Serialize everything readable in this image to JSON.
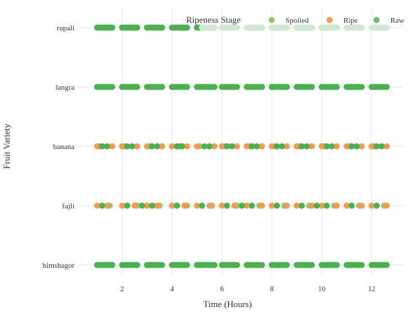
{
  "chart_data": {
    "type": "scatter",
    "xlabel": "Time (Hours)",
    "ylabel": "Fruit Variety",
    "x_ticks": [
      2,
      4,
      6,
      8,
      10,
      12
    ],
    "xlim": [
      0.2,
      13.3
    ],
    "categories": [
      "rupali",
      "langra",
      "banana",
      "fajli",
      "himshagor"
    ],
    "grid": true,
    "legend": {
      "title": "Ripeness Stage",
      "placement": "top-right",
      "entries": [
        "Spoiled",
        "Ripe",
        "Raw"
      ]
    },
    "series": [
      {
        "name": "Spoiled",
        "color": "#9cc26c",
        "points": [
          {
            "y": "rupali",
            "x": [
              1.2,
              1.4,
              2.2,
              2.5,
              3.1,
              3.3,
              4.1,
              4.3,
              5.2,
              5.5,
              6.2,
              6.4,
              7.1,
              7.4,
              8.2,
              8.4,
              9.2,
              9.5,
              10.1,
              10.3,
              11.2,
              11.5,
              12.1,
              12.3
            ]
          },
          {
            "y": "langra",
            "x": [
              1.3,
              2.3,
              3.2,
              4.2,
              5.3,
              6.3,
              7.2,
              8.3,
              9.3,
              10.2,
              11.3,
              12.2
            ]
          },
          {
            "y": "banana",
            "x": [
              1.1,
              2.1,
              3.1,
              4.3,
              5.1,
              6.1,
              7.1,
              8.1,
              9.1,
              10.1,
              11.1,
              12.1
            ]
          },
          {
            "y": "fajli",
            "x": [
              1.5,
              2.6,
              3.5,
              4.6,
              5.5,
              6.6,
              7.5,
              8.5,
              9.5,
              10.5,
              11.5,
              12.5
            ]
          },
          {
            "y": "himshagor",
            "x": [
              1.4,
              2.4,
              3.4,
              4.4,
              5.4,
              6.4,
              7.4,
              8.4,
              9.4,
              10.4,
              11.4,
              12.4
            ]
          }
        ]
      },
      {
        "name": "Ripe",
        "color": "#f39a4e",
        "points": [
          {
            "y": "rupali",
            "x": [
              2.1,
              2.6
            ]
          },
          {
            "y": "banana",
            "x": [
              1.0,
              1.6,
              2.0,
              2.6,
              3.0,
              3.6,
              4.0,
              4.6,
              5.0,
              5.7,
              6.0,
              6.6,
              7.0,
              7.6,
              8.0,
              8.6,
              9.0,
              9.6,
              10.0,
              10.6,
              11.0,
              11.6,
              12.0,
              12.6
            ]
          },
          {
            "y": "fajli",
            "x": [
              1.0,
              1.4,
              2.0,
              2.5,
              3.0,
              3.4,
              4.0,
              4.5,
              5.0,
              5.6,
              6.0,
              6.5,
              7.0,
              7.6,
              8.0,
              8.6,
              9.0,
              9.6,
              10.0,
              10.6,
              11.0,
              11.6,
              12.0,
              12.6
            ]
          }
        ]
      },
      {
        "name": "Raw",
        "color": "#4caf50",
        "points": [
          {
            "y": "rupali",
            "x": [
              1.0,
              1.1,
              1.2,
              1.3,
              1.4,
              1.5,
              1.6,
              2.0,
              2.1,
              2.2,
              2.3,
              2.4,
              2.5,
              2.6,
              3.0,
              3.1,
              3.2,
              3.3,
              3.4,
              3.5,
              3.6,
              4.0,
              4.1,
              4.2,
              4.3,
              4.4,
              4.5,
              4.6,
              5.0,
              5.1
            ]
          },
          {
            "y": "langra",
            "x": [
              1.0,
              1.1,
              1.2,
              1.3,
              1.4,
              1.5,
              1.6,
              2.0,
              2.1,
              2.2,
              2.3,
              2.4,
              2.5,
              2.6,
              3.0,
              3.1,
              3.2,
              3.3,
              3.4,
              3.5,
              3.6,
              4.0,
              4.1,
              4.2,
              4.3,
              4.4,
              4.5,
              4.6,
              5.0,
              5.1,
              5.2,
              5.3,
              5.4,
              5.5,
              5.6,
              5.7,
              6.0,
              6.1,
              6.2,
              6.3,
              6.4,
              6.5,
              6.6,
              7.0,
              7.1,
              7.2,
              7.3,
              7.4,
              7.5,
              7.6,
              8.0,
              8.1,
              8.2,
              8.3,
              8.4,
              8.5,
              8.6,
              9.0,
              9.1,
              9.2,
              9.3,
              9.4,
              9.5,
              9.6,
              10.0,
              10.1,
              10.2,
              10.3,
              10.4,
              10.5,
              10.6,
              11.0,
              11.1,
              11.2,
              11.3,
              11.4,
              11.5,
              11.6,
              12.0,
              12.1,
              12.2,
              12.3,
              12.4,
              12.5,
              12.6
            ]
          },
          {
            "y": "banana",
            "x": [
              1.2,
              1.4,
              2.2,
              2.4,
              3.2,
              3.4,
              4.2,
              4.4,
              5.3,
              5.5,
              6.2,
              6.4,
              7.2,
              7.4,
              8.2,
              8.4,
              9.2,
              9.4,
              10.2,
              10.4,
              11.2,
              11.4,
              12.2,
              12.4
            ]
          },
          {
            "y": "fajli",
            "x": [
              1.2,
              2.2,
              2.8,
              3.2,
              4.2,
              5.2,
              6.2,
              6.8,
              7.2,
              8.2,
              9.2,
              9.8,
              10.2,
              11.2,
              12.2
            ]
          },
          {
            "y": "himshagor",
            "x": [
              1.0,
              1.1,
              1.2,
              1.3,
              1.4,
              1.5,
              1.6,
              2.0,
              2.1,
              2.2,
              2.3,
              2.4,
              2.5,
              2.6,
              3.0,
              3.1,
              3.2,
              3.3,
              3.4,
              3.5,
              3.6,
              4.0,
              4.1,
              4.2,
              4.3,
              4.4,
              4.5,
              4.6,
              5.0,
              5.1,
              5.2,
              5.3,
              5.4,
              5.5,
              5.6,
              5.7,
              6.0,
              6.1,
              6.2,
              6.3,
              6.4,
              6.5,
              6.6,
              7.0,
              7.1,
              7.2,
              7.3,
              7.4,
              7.5,
              7.6,
              8.0,
              8.1,
              8.2,
              8.3,
              8.4,
              8.5,
              8.6,
              9.0,
              9.1,
              9.2,
              9.3,
              9.4,
              9.5,
              9.6,
              10.0,
              10.1,
              10.2,
              10.3,
              10.4,
              10.5,
              10.6,
              11.0,
              11.1,
              11.2,
              11.3,
              11.4,
              11.5,
              11.6,
              12.0,
              12.1,
              12.2,
              12.3,
              12.4,
              12.5,
              12.6
            ]
          }
        ]
      },
      {
        "name": "Raw",
        "color": "#cfe8d0",
        "points": [
          {
            "y": "rupali",
            "x": [
              5.2,
              5.3,
              5.4,
              5.5,
              5.6,
              5.7,
              6.0,
              6.1,
              6.2,
              6.3,
              6.4,
              6.5,
              6.6,
              7.0,
              7.1,
              7.2,
              7.3,
              7.4,
              7.5,
              7.6,
              8.0,
              8.1,
              8.2,
              8.3,
              8.4,
              8.5,
              8.6,
              9.0,
              9.1,
              9.2,
              9.3,
              9.4,
              9.5,
              9.6,
              10.0,
              10.1,
              10.2,
              10.3,
              10.4,
              10.5,
              10.6,
              11.0,
              11.1,
              11.2,
              11.3,
              11.4,
              11.5,
              11.6,
              12.0,
              12.1,
              12.2,
              12.3,
              12.4,
              12.5,
              12.6
            ]
          }
        ]
      }
    ]
  }
}
